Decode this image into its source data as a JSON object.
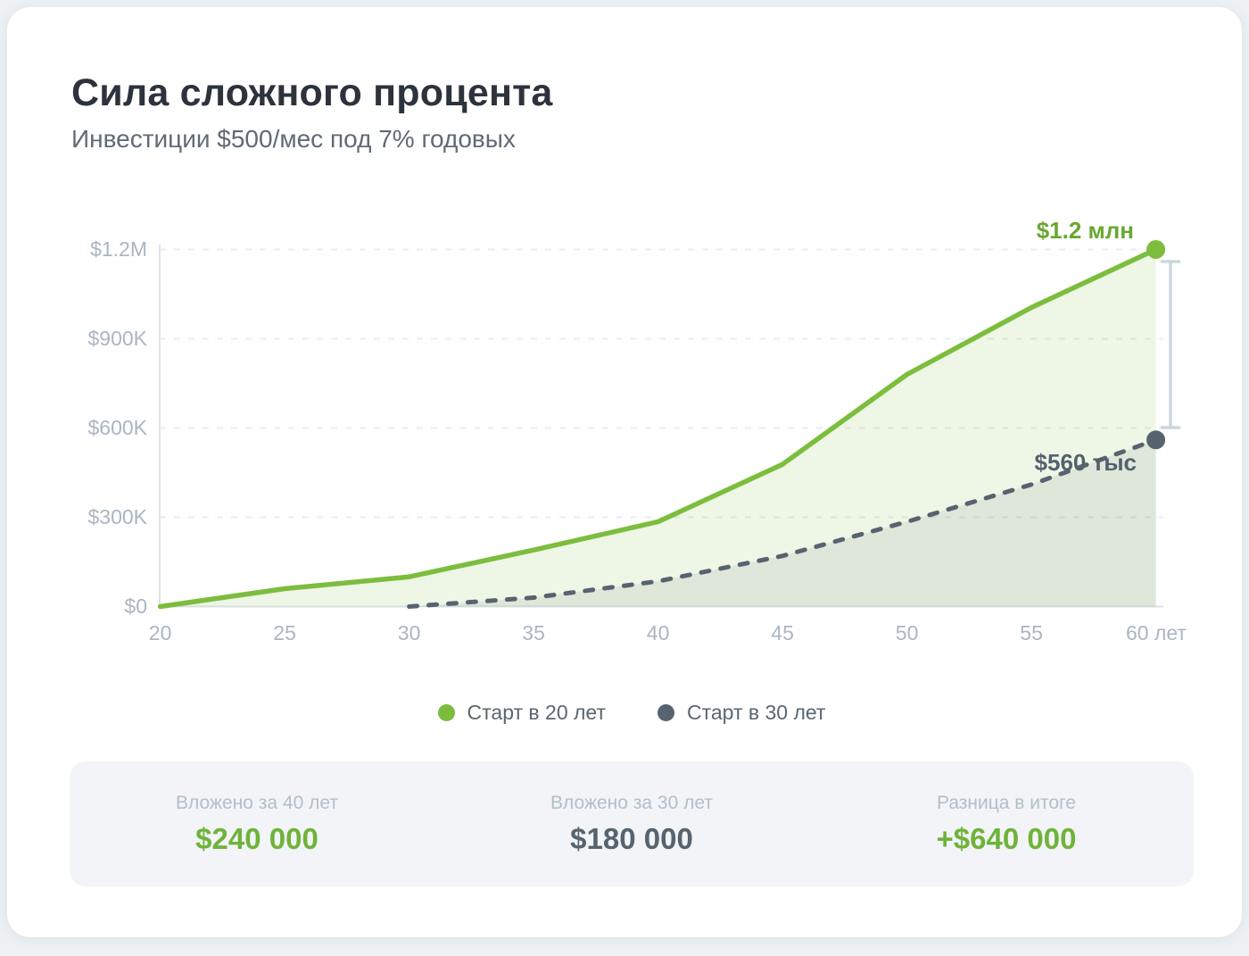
{
  "header": {
    "title": "Сила сложного процента",
    "subtitle": "Инвестиции $500/мес под 7% годовых"
  },
  "chart_data": {
    "type": "area",
    "title": "Сила сложного процента",
    "subtitle": "Инвестиции $500/мес под 7% годовых",
    "x_ticks": [
      "20",
      "25",
      "30",
      "35",
      "40",
      "45",
      "50",
      "55",
      "60 лет"
    ],
    "y_ticks": [
      "$1.2M",
      "$900K",
      "$600K",
      "$300K",
      "$0"
    ],
    "x_range_ages": [
      20,
      60
    ],
    "y_range_usd": [
      0,
      1200000
    ],
    "grid": "horizontal-dashed",
    "legend_position": "bottom-center",
    "series": [
      {
        "name": "Старт в 20 лет",
        "color": "#7dbd3e",
        "fill_rgba": "rgba(125,189,62,0.13)",
        "line_style": "solid",
        "start_age": 20,
        "ages": [
          20,
          25,
          30,
          35,
          40,
          45,
          50,
          55,
          60
        ],
        "values_usd": [
          0,
          60000,
          100000,
          190000,
          285000,
          478000,
          780000,
          1005000,
          1200000
        ],
        "end_label": "$1.2 млн"
      },
      {
        "name": "Старт в 30 лет",
        "color": "#57646f",
        "fill_rgba": "rgba(87,100,111,0.10)",
        "line_style": "dashed",
        "start_age": 30,
        "ages": [
          30,
          35,
          40,
          45,
          50,
          55,
          60
        ],
        "values_usd": [
          0,
          30000,
          85000,
          170000,
          285000,
          410000,
          560000
        ],
        "end_label": "$560 тыс"
      }
    ]
  },
  "legend": {
    "items": [
      {
        "label": "Старт в 20 лет",
        "color": "#7dbd3e"
      },
      {
        "label": "Старт в 30 лет",
        "color": "#57646f"
      }
    ]
  },
  "stats": {
    "items": [
      {
        "label": "Вложено за 40 лет",
        "value": "$240 000",
        "tone": "green"
      },
      {
        "label": "Вложено за 30 лет",
        "value": "$180 000",
        "tone": "dark"
      },
      {
        "label": "Разница в итоге",
        "value": "+$640 000",
        "tone": "green"
      }
    ]
  },
  "colors": {
    "accent_green": "#7dbd3e",
    "green_text": "#6fb33a",
    "dark_slate": "#57646f",
    "axis_text": "#a9b6c2",
    "gridline": "#e9edf0",
    "panel_bg": "#f2f4f7",
    "bracket": "#ccd7df"
  }
}
